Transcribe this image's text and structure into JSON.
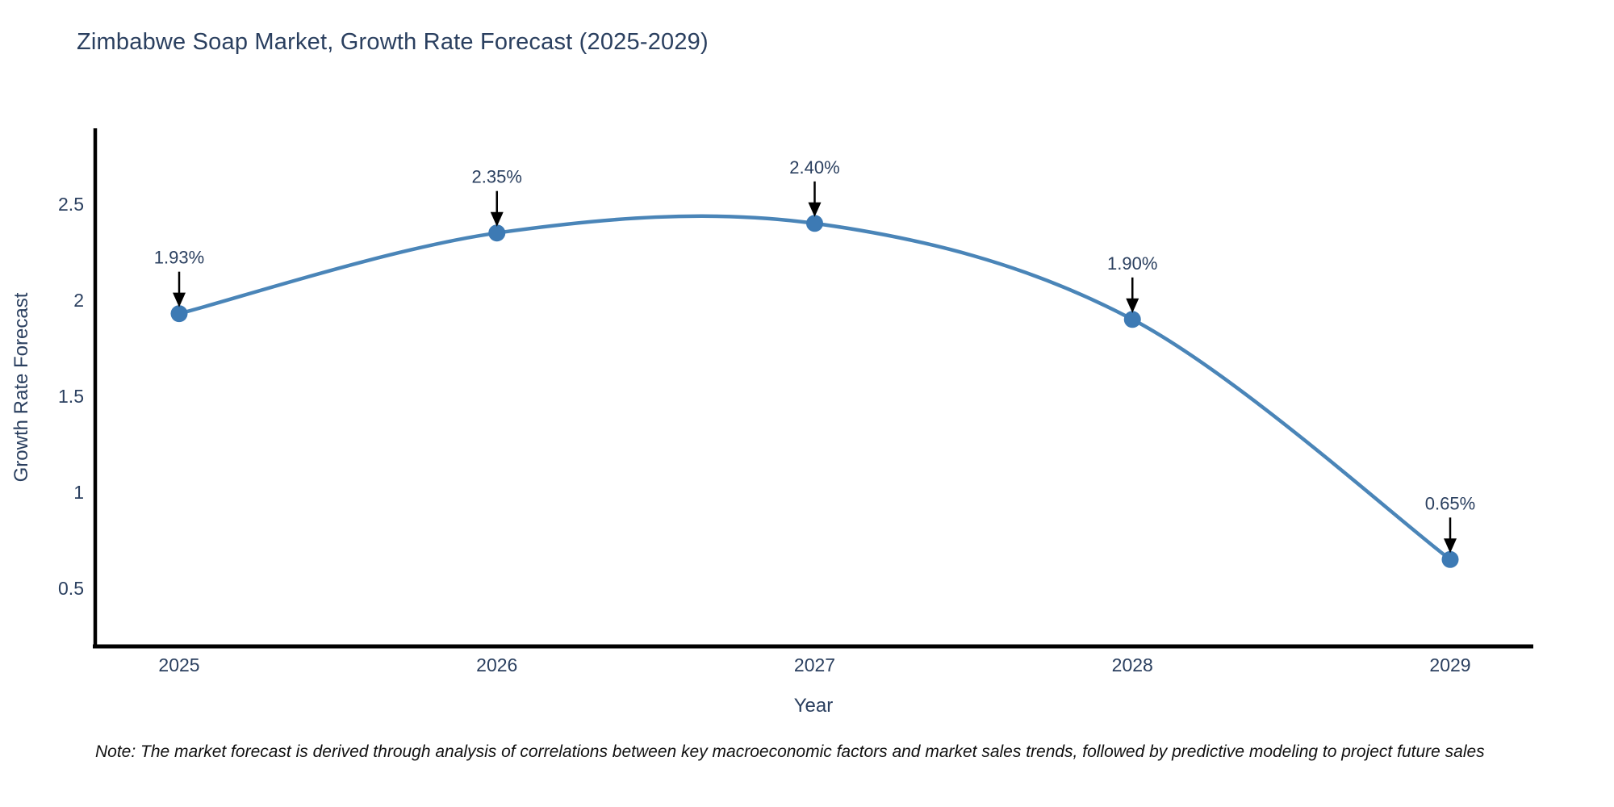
{
  "note": "Note: The market forecast is derived through analysis of correlations between key macroeconomic factors and market sales trends, followed by predictive modeling to project future sales",
  "chart_data": {
    "type": "line",
    "title": "Zimbabwe Soap Market, Growth Rate Forecast (2025-2029)",
    "xlabel": "Year",
    "ylabel": "Growth Rate Forecast",
    "x": [
      2025,
      2026,
      2027,
      2028,
      2029
    ],
    "values": [
      1.93,
      2.35,
      2.4,
      1.9,
      0.65
    ],
    "point_labels": [
      "1.93%",
      "2.35%",
      "2.40%",
      "1.90%",
      "0.65%"
    ],
    "x_tick_labels": [
      "2025",
      "2026",
      "2027",
      "2028",
      "2029"
    ],
    "y_ticks": [
      0.5,
      1,
      1.5,
      2,
      2.5
    ],
    "y_tick_labels": [
      "0.5",
      "1",
      "1.5",
      "2",
      "2.5"
    ],
    "ylim": [
      0.2,
      2.9
    ],
    "line_shape": "spline",
    "grid": "off",
    "legend": "none",
    "colors": {
      "line": "#4a85b8",
      "marker": "#3d7ab4",
      "axis": "#000000",
      "arrow": "#000000",
      "text": "#2a3f5f"
    }
  }
}
